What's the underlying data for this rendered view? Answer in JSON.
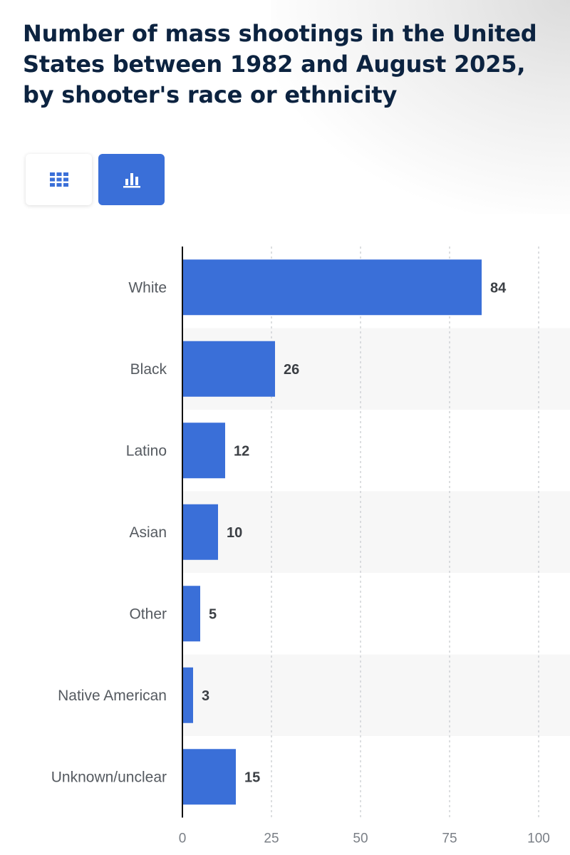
{
  "title": "Number of mass shootings in the United States between 1982 and August 2025, by shooter's race or ethnicity",
  "toolbar": {
    "table_icon": "table-grid-icon",
    "chart_icon": "bar-chart-icon",
    "active": "chart"
  },
  "colors": {
    "bar": "#3a6fd8",
    "title": "#0c2340",
    "stripe": "#f7f7f7"
  },
  "chart_data": {
    "type": "bar",
    "orientation": "horizontal",
    "title": "Number of mass shootings in the United States between 1982 and August 2025, by shooter's race or ethnicity",
    "categories": [
      "White",
      "Black",
      "Latino",
      "Asian",
      "Other",
      "Native American",
      "Unknown/unclear"
    ],
    "values": [
      84,
      26,
      12,
      10,
      5,
      3,
      15
    ],
    "xlim": [
      0,
      100
    ],
    "xticks": [
      "0",
      "25",
      "50",
      "75",
      "100"
    ],
    "grid": "vertical dotted",
    "xlabel": "",
    "ylabel": ""
  }
}
